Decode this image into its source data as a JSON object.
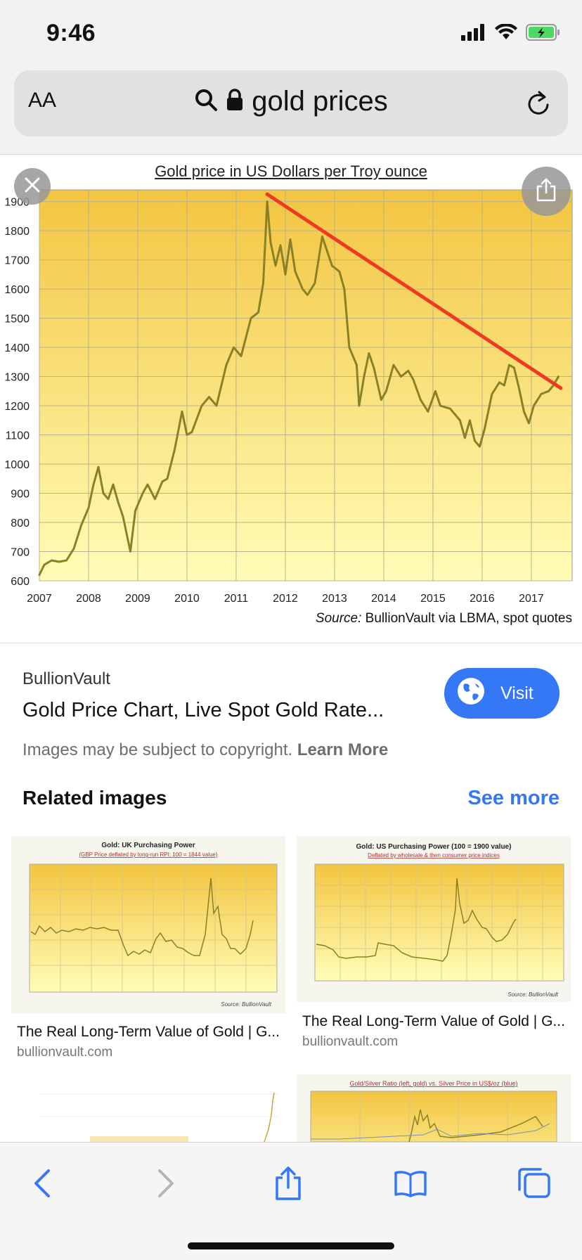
{
  "status": {
    "time": "9:46"
  },
  "browser": {
    "text_size_label": "AA",
    "url_text": "gold prices"
  },
  "chart_data": {
    "type": "line",
    "title": "Gold price in US Dollars per Troy  ounce",
    "x_tick_labels": [
      "2007",
      "2008",
      "2009",
      "2010",
      "2011",
      "2012",
      "2013",
      "2014",
      "2015",
      "2016",
      "2017"
    ],
    "y_tick_labels": [
      "600",
      "700",
      "800",
      "900",
      "1000",
      "1100",
      "1200",
      "1300",
      "1400",
      "1500",
      "1600",
      "1700",
      "1800",
      "1900"
    ],
    "xlim": [
      2007,
      2017.83
    ],
    "ylim": [
      600,
      1940
    ],
    "grid": true,
    "series": [
      {
        "color": "#8a8028",
        "points": [
          [
            2007.0,
            620
          ],
          [
            2007.1,
            655
          ],
          [
            2007.25,
            670
          ],
          [
            2007.4,
            665
          ],
          [
            2007.55,
            670
          ],
          [
            2007.7,
            710
          ],
          [
            2007.85,
            790
          ],
          [
            2008.0,
            850
          ],
          [
            2008.1,
            930
          ],
          [
            2008.2,
            990
          ],
          [
            2008.3,
            900
          ],
          [
            2008.4,
            880
          ],
          [
            2008.5,
            930
          ],
          [
            2008.6,
            870
          ],
          [
            2008.7,
            820
          ],
          [
            2008.8,
            740
          ],
          [
            2008.85,
            700
          ],
          [
            2008.95,
            840
          ],
          [
            2009.1,
            900
          ],
          [
            2009.2,
            930
          ],
          [
            2009.35,
            880
          ],
          [
            2009.5,
            940
          ],
          [
            2009.6,
            950
          ],
          [
            2009.75,
            1050
          ],
          [
            2009.9,
            1180
          ],
          [
            2010.0,
            1100
          ],
          [
            2010.1,
            1110
          ],
          [
            2010.3,
            1200
          ],
          [
            2010.45,
            1230
          ],
          [
            2010.6,
            1200
          ],
          [
            2010.8,
            1340
          ],
          [
            2010.95,
            1400
          ],
          [
            2011.1,
            1370
          ],
          [
            2011.3,
            1500
          ],
          [
            2011.45,
            1520
          ],
          [
            2011.55,
            1620
          ],
          [
            2011.63,
            1900
          ],
          [
            2011.7,
            1760
          ],
          [
            2011.8,
            1680
          ],
          [
            2011.9,
            1750
          ],
          [
            2012.0,
            1650
          ],
          [
            2012.1,
            1770
          ],
          [
            2012.2,
            1660
          ],
          [
            2012.35,
            1600
          ],
          [
            2012.45,
            1580
          ],
          [
            2012.6,
            1620
          ],
          [
            2012.75,
            1780
          ],
          [
            2012.85,
            1730
          ],
          [
            2012.95,
            1680
          ],
          [
            2013.1,
            1660
          ],
          [
            2013.2,
            1600
          ],
          [
            2013.3,
            1400
          ],
          [
            2013.45,
            1340
          ],
          [
            2013.5,
            1200
          ],
          [
            2013.6,
            1300
          ],
          [
            2013.7,
            1380
          ],
          [
            2013.8,
            1330
          ],
          [
            2013.95,
            1220
          ],
          [
            2014.05,
            1250
          ],
          [
            2014.2,
            1340
          ],
          [
            2014.35,
            1300
          ],
          [
            2014.5,
            1320
          ],
          [
            2014.6,
            1290
          ],
          [
            2014.75,
            1220
          ],
          [
            2014.9,
            1180
          ],
          [
            2015.05,
            1250
          ],
          [
            2015.15,
            1200
          ],
          [
            2015.35,
            1190
          ],
          [
            2015.45,
            1170
          ],
          [
            2015.55,
            1150
          ],
          [
            2015.65,
            1090
          ],
          [
            2015.75,
            1150
          ],
          [
            2015.85,
            1080
          ],
          [
            2015.95,
            1060
          ],
          [
            2016.05,
            1120
          ],
          [
            2016.2,
            1240
          ],
          [
            2016.35,
            1280
          ],
          [
            2016.45,
            1270
          ],
          [
            2016.55,
            1340
          ],
          [
            2016.65,
            1330
          ],
          [
            2016.75,
            1260
          ],
          [
            2016.85,
            1180
          ],
          [
            2016.95,
            1140
          ],
          [
            2017.05,
            1200
          ],
          [
            2017.2,
            1240
          ],
          [
            2017.35,
            1250
          ],
          [
            2017.45,
            1270
          ],
          [
            2017.55,
            1300
          ]
        ]
      },
      {
        "color": "#ee3a22",
        "points": [
          [
            2011.63,
            1925
          ],
          [
            2017.6,
            1260
          ]
        ]
      }
    ],
    "source_label": "Source:",
    "source_text": "BullionVault via LBMA, spot quotes"
  },
  "result": {
    "source": "BullionVault",
    "title": "Gold Price Chart, Live Spot Gold Rate...",
    "visit_label": "Visit",
    "copyright_text": "Images may be subject to copyright.",
    "learn_more": "Learn More"
  },
  "related": {
    "heading": "Related images",
    "see_more": "See more",
    "items": [
      {
        "chart_title": "Gold: UK Purchasing Power",
        "chart_subtitle": "(GBP Price deflated by long-run RPI; 100 = 1844 value)",
        "caption": "The Real Long-Term Value of Gold | G...",
        "domain": "bullionvault.com",
        "source": "Source: BullionVault"
      },
      {
        "chart_title": "Gold: US Purchasing Power (100 = 1900 value)",
        "chart_subtitle": "Deflated by wholesale & then consumer price indices",
        "caption": "The Real Long-Term Value of Gold | G...",
        "domain": "bullionvault.com",
        "source": "Source: BullionVault"
      },
      {
        "chart_title": "",
        "caption": "",
        "domain": ""
      },
      {
        "chart_title": "Gold/Silver Ratio (left, gold) vs. Silver Price in US$/oz (blue)",
        "caption": "",
        "domain": ""
      }
    ]
  },
  "colors": {
    "accent": "#3478f6",
    "chart_top": "#f3c540",
    "chart_bottom": "#fffdb8",
    "trend": "#ee3a22",
    "series": "#8a8028"
  }
}
